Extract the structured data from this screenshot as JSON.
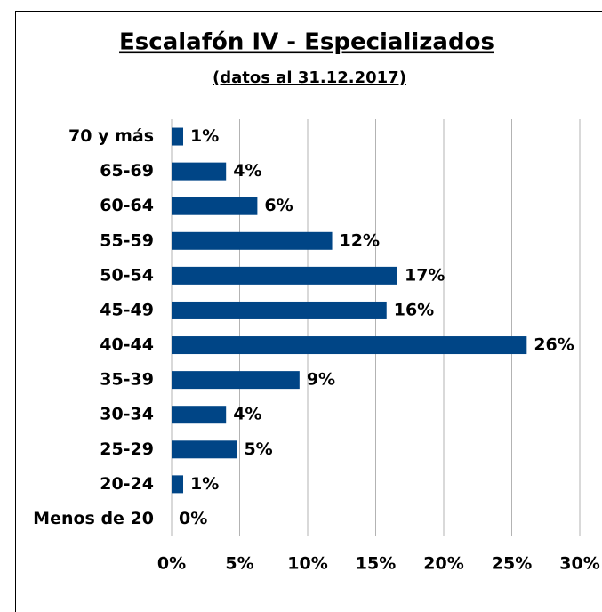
{
  "chart_data": {
    "type": "barh",
    "title": "Escalafón IV - Especializados",
    "subtitle": "(datos al 31.12.2017)",
    "categories": [
      "70 y más",
      "65-69",
      "60-64",
      "55-59",
      "50-54",
      "45-49",
      "40-44",
      "35-39",
      "30-34",
      "25-29",
      "20-24",
      "Menos de 20"
    ],
    "values": [
      0.85,
      4.0,
      6.3,
      11.8,
      16.6,
      15.8,
      26.1,
      9.4,
      4.0,
      4.8,
      0.85,
      0
    ],
    "value_labels": [
      "1%",
      "4%",
      "6%",
      "12%",
      "17%",
      "16%",
      "26%",
      "9%",
      "4%",
      "5%",
      "1%",
      "0%"
    ],
    "color": "#004586",
    "xlim": [
      0,
      30
    ],
    "xticks": [
      {
        "value": 0,
        "label": "0%"
      },
      {
        "value": 5,
        "label": "5%"
      },
      {
        "value": 10,
        "label": "10%"
      },
      {
        "value": 15,
        "label": "15%"
      },
      {
        "value": 20,
        "label": "20%"
      },
      {
        "value": 25,
        "label": "25%"
      },
      {
        "value": 30,
        "label": "30%"
      }
    ],
    "grid": true
  }
}
